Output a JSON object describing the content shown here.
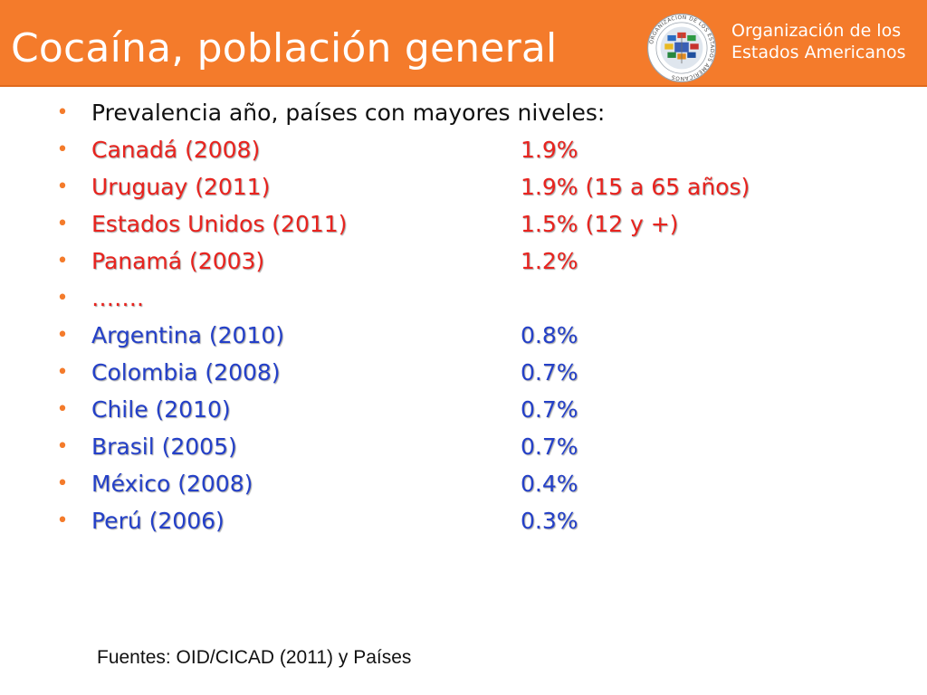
{
  "header": {
    "title": "Cocaína, población general",
    "org_line1": "Organización de los",
    "org_line2": "Estados Americanos",
    "seal_text": "ORGANIZACION DE LOS ESTADOS AMERICANOS",
    "bg_color": "#F47B2B"
  },
  "intro": "Prevalencia año, países con mayores niveles:",
  "top_rows": [
    {
      "label": "Canadá (2008)",
      "value": "1.9%"
    },
    {
      "label": "Uruguay (2011)",
      "value": "1.9% (15 a 65 años)"
    },
    {
      "label": "Estados Unidos (2011)",
      "value": "1.5% (12 y +)"
    },
    {
      "label": "Panamá (2003)",
      "value": "1.2%"
    },
    {
      "label": "…….",
      "value": ""
    }
  ],
  "rest_rows": [
    {
      "label": "Argentina (2010)",
      "value": "0.8%"
    },
    {
      "label": "Colombia (2008)",
      "value": "0.7%"
    },
    {
      "label": "Chile (2010)",
      "value": "0.7%"
    },
    {
      "label": "Brasil (2005)",
      "value": "0.7%"
    },
    {
      "label": "México (2008)",
      "value": "0.4%"
    },
    {
      "label": "Perú (2006)",
      "value": "0.3%"
    }
  ],
  "bullet_char": "•",
  "colors": {
    "top_rows": "#E8231E",
    "rest_rows": "#2440C8",
    "bullet": "#F47B2B"
  },
  "source": "Fuentes: OID/CICAD (2011) y Países"
}
